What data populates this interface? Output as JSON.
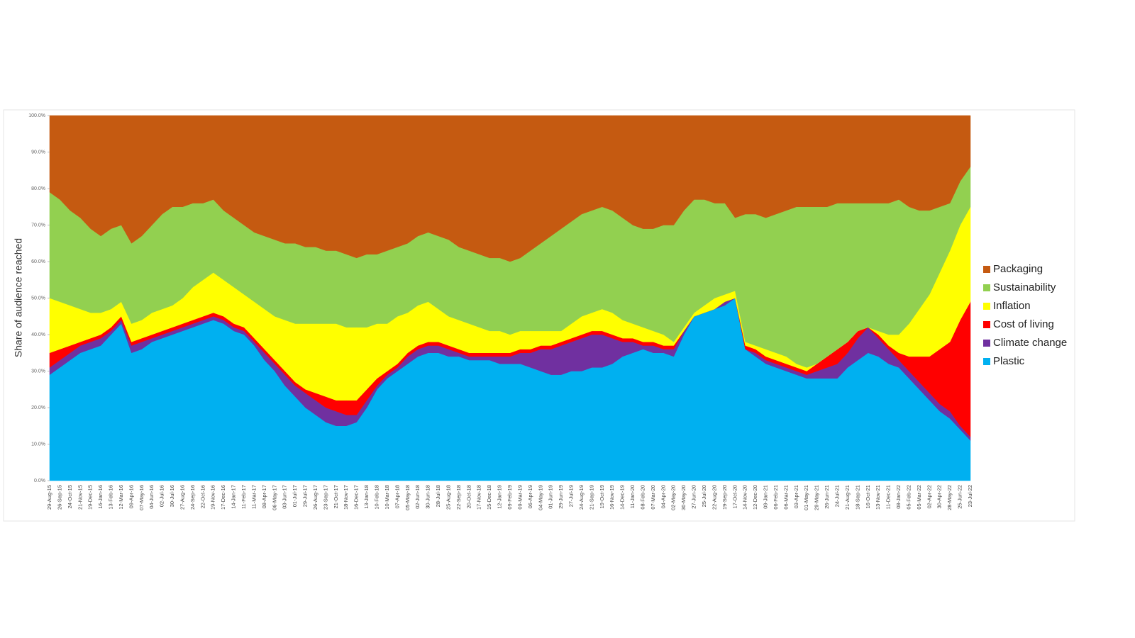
{
  "chart_data": {
    "type": "stacked_area",
    "y_label": "Share of audience reached",
    "categories": [
      "29-Aug-15",
      "26-Sep-15",
      "24-Oct-15",
      "21-Nov-15",
      "19-Dec-15",
      "16-Jan-16",
      "13-Feb-16",
      "12-Mar-16",
      "09-Apr-16",
      "07-May-16",
      "04-Jun-16",
      "02-Jul-16",
      "30-Jul-16",
      "27-Aug-16",
      "24-Sep-16",
      "22-Oct-16",
      "19-Nov-16",
      "17-Dec-16",
      "14-Jan-17",
      "11-Feb-17",
      "11-Mar-17",
      "08-Apr-17",
      "06-May-17",
      "03-Jun-17",
      "01-Jul-17",
      "29-Jul-17",
      "26-Aug-17",
      "23-Sep-17",
      "21-Oct-17",
      "18-Nov-17",
      "16-Dec-17",
      "13-Jan-18",
      "10-Feb-18",
      "10-Mar-18",
      "07-Apr-18",
      "05-May-18",
      "02-Jun-18",
      "30-Jun-18",
      "28-Jul-18",
      "25-Aug-18",
      "22-Sep-18",
      "20-Oct-18",
      "17-Nov-18",
      "15-Dec-18",
      "12-Jan-19",
      "09-Feb-19",
      "09-Mar-19",
      "06-Apr-19",
      "04-May-19",
      "01-Jun-19",
      "29-Jun-19",
      "27-Jul-19",
      "24-Aug-19",
      "21-Sep-19",
      "19-Oct-19",
      "16-Nov-19",
      "14-Dec-19",
      "11-Jan-20",
      "08-Feb-20",
      "07-Mar-20",
      "04-Apr-20",
      "02-May-20",
      "30-May-20",
      "27-Jun-20",
      "25-Jul-20",
      "22-Aug-20",
      "19-Sep-20",
      "17-Oct-20",
      "14-Nov-20",
      "12-Dec-20",
      "09-Jan-21",
      "06-Feb-21",
      "06-Mar-21",
      "03-Apr-21",
      "01-May-21",
      "29-May-21",
      "26-Jun-21",
      "24-Jul-21",
      "21-Aug-21",
      "18-Sep-21",
      "16-Oct-21",
      "13-Nov-21",
      "11-Dec-21",
      "08-Jan-22",
      "05-Feb-22",
      "05-Mar-22",
      "02-Apr-22",
      "30-Apr-22",
      "28-May-22",
      "25-Jun-22",
      "23-Jul-22"
    ],
    "series": [
      {
        "name": "Packaging",
        "color": "#c55a11",
        "values": [
          21,
          23,
          26,
          28,
          31,
          33,
          31,
          30,
          35,
          33,
          30,
          27,
          25,
          25,
          24,
          24,
          23,
          26,
          28,
          30,
          32,
          33,
          34,
          35,
          35,
          36,
          36,
          37,
          37,
          38,
          39,
          38,
          38,
          37,
          36,
          35,
          33,
          32,
          33,
          34,
          36,
          37,
          38,
          39,
          39,
          40,
          39,
          37,
          35,
          33,
          31,
          29,
          27,
          26,
          25,
          26,
          28,
          30,
          31,
          31,
          30,
          30,
          26,
          23,
          23,
          24,
          24,
          28,
          27,
          27,
          28,
          27,
          26,
          25,
          25,
          25,
          25,
          24,
          24,
          24,
          24,
          24,
          24,
          23,
          25,
          26,
          26,
          25,
          24,
          18,
          14
        ]
      },
      {
        "name": "Sustainability",
        "color": "#92d050",
        "values": [
          29,
          28,
          26,
          25,
          23,
          21,
          22,
          21,
          22,
          23,
          24,
          26,
          27,
          25,
          23,
          21,
          20,
          19,
          19,
          19,
          19,
          20,
          21,
          21,
          22,
          21,
          21,
          20,
          20,
          20,
          19,
          20,
          19,
          20,
          19,
          19,
          19,
          19,
          20,
          21,
          20,
          20,
          20,
          20,
          20,
          20,
          20,
          22,
          24,
          26,
          28,
          28,
          28,
          28,
          28,
          28,
          28,
          27,
          27,
          28,
          30,
          32,
          32,
          31,
          29,
          26,
          25,
          20,
          35,
          36,
          36,
          38,
          40,
          43,
          44,
          43,
          41,
          40,
          38,
          35,
          34,
          35,
          36,
          37,
          32,
          27,
          23,
          18,
          13,
          12,
          11
        ]
      },
      {
        "name": "Inflation",
        "color": "#ffff00",
        "values": [
          15,
          13,
          11,
          9,
          7,
          6,
          5,
          4,
          5,
          5,
          6,
          6,
          6,
          7,
          9,
          10,
          11,
          10,
          10,
          9,
          10,
          11,
          12,
          14,
          16,
          18,
          19,
          20,
          21,
          20,
          20,
          17,
          15,
          13,
          13,
          11,
          11,
          11,
          9,
          8,
          8,
          8,
          7,
          6,
          6,
          5,
          5,
          5,
          4,
          4,
          3,
          4,
          5,
          5,
          6,
          6,
          5,
          4,
          4,
          3,
          3,
          1,
          1,
          1,
          2,
          3,
          2,
          2,
          1,
          1,
          2,
          2,
          2,
          1,
          1,
          0,
          0,
          0,
          0,
          0,
          0,
          1,
          3,
          5,
          9,
          13,
          17,
          21,
          25,
          26,
          26
        ]
      },
      {
        "name": "Cost of living",
        "color": "#ff0000",
        "values": [
          4,
          3,
          2,
          1,
          1,
          1,
          1,
          1,
          1,
          1,
          1,
          1,
          1,
          1,
          1,
          1,
          1,
          1,
          1,
          1,
          1,
          1,
          1,
          1,
          1,
          1,
          2,
          3,
          3,
          4,
          4,
          3,
          2,
          1,
          1,
          1,
          1,
          1,
          1,
          1,
          1,
          1,
          1,
          1,
          1,
          1,
          1,
          1,
          1,
          1,
          1,
          1,
          1,
          1,
          1,
          1,
          1,
          1,
          1,
          1,
          1,
          1,
          0,
          0,
          0,
          0,
          0,
          0,
          1,
          1,
          1,
          1,
          1,
          1,
          1,
          2,
          3,
          4,
          3,
          2,
          0,
          1,
          1,
          2,
          4,
          7,
          10,
          15,
          19,
          29,
          37
        ]
      },
      {
        "name": "Climate change",
        "color": "#7030a0",
        "values": [
          2,
          2,
          2,
          2,
          2,
          2,
          1,
          1,
          2,
          2,
          1,
          1,
          1,
          1,
          1,
          1,
          1,
          1,
          1,
          1,
          1,
          2,
          2,
          3,
          3,
          4,
          4,
          4,
          4,
          3,
          2,
          2,
          1,
          1,
          1,
          2,
          2,
          2,
          2,
          2,
          1,
          1,
          1,
          1,
          2,
          2,
          3,
          4,
          6,
          7,
          8,
          8,
          9,
          9,
          9,
          7,
          4,
          3,
          1,
          2,
          1,
          2,
          1,
          0,
          0,
          0,
          1,
          0,
          0,
          1,
          1,
          1,
          1,
          1,
          1,
          2,
          3,
          4,
          4,
          6,
          7,
          5,
          4,
          2,
          2,
          2,
          2,
          2,
          2,
          1,
          1
        ]
      },
      {
        "name": "Plastic",
        "color": "#00b0f0",
        "values": [
          29,
          31,
          33,
          35,
          36,
          37,
          40,
          43,
          35,
          36,
          38,
          39,
          40,
          41,
          42,
          43,
          44,
          43,
          41,
          40,
          37,
          33,
          30,
          26,
          23,
          20,
          18,
          16,
          15,
          15,
          16,
          20,
          25,
          28,
          30,
          32,
          34,
          35,
          35,
          34,
          34,
          33,
          33,
          33,
          32,
          32,
          32,
          31,
          30,
          29,
          29,
          30,
          30,
          31,
          31,
          32,
          34,
          35,
          36,
          35,
          35,
          34,
          40,
          45,
          46,
          47,
          48,
          50,
          36,
          34,
          32,
          31,
          30,
          29,
          28,
          28,
          28,
          28,
          31,
          33,
          35,
          34,
          32,
          31,
          28,
          25,
          22,
          19,
          17,
          14,
          11
        ]
      }
    ],
    "ylim": [
      0,
      100
    ],
    "yticks": [
      {
        "value": 0,
        "label": "0.0%"
      },
      {
        "value": 10,
        "label": "10.0%"
      },
      {
        "value": 20,
        "label": "20.0%"
      },
      {
        "value": 30,
        "label": "30.0%"
      },
      {
        "value": 40,
        "label": "40.0%"
      },
      {
        "value": 50,
        "label": "50.0%"
      },
      {
        "value": 60,
        "label": "60.0%"
      },
      {
        "value": 70,
        "label": "70.0%"
      },
      {
        "value": 80,
        "label": "80.0%"
      },
      {
        "value": 90,
        "label": "90.0%"
      },
      {
        "value": 100,
        "label": "100.0%"
      }
    ],
    "legend": "right"
  }
}
